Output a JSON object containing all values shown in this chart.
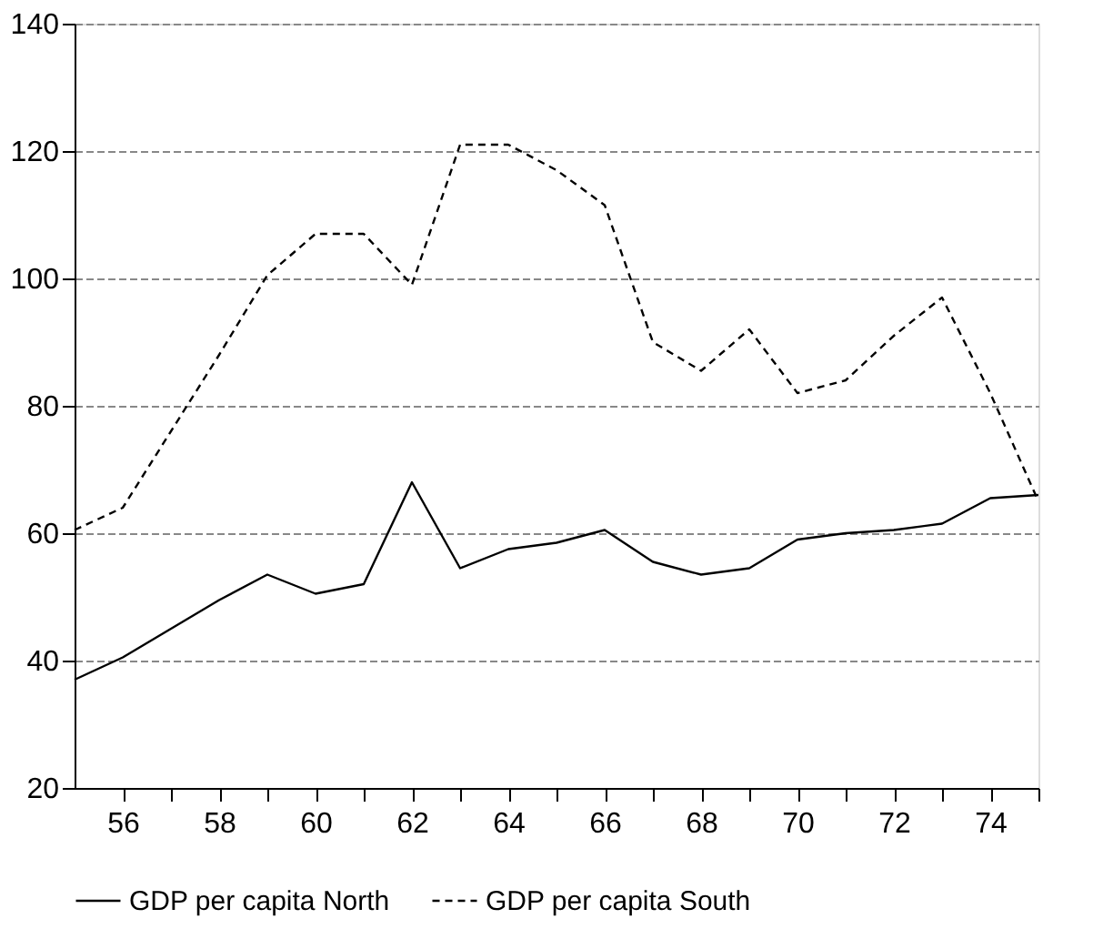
{
  "chart_data": {
    "type": "line",
    "x": [
      55,
      56,
      57,
      58,
      59,
      60,
      61,
      62,
      63,
      64,
      65,
      66,
      67,
      68,
      69,
      70,
      71,
      72,
      73,
      74,
      75
    ],
    "series": [
      {
        "name": "GDP per capita North",
        "color": "#000000",
        "line_style": "solid",
        "values": [
          37,
          40.5,
          45,
          49.5,
          53.5,
          50.5,
          52,
          68,
          54.5,
          57.5,
          58.5,
          60.5,
          55.5,
          53.5,
          54.5,
          59,
          60,
          60.5,
          61.5,
          65.5,
          66
        ]
      },
      {
        "name": "GDP per capita South",
        "color": "#000000",
        "line_style": "dashed",
        "values": [
          60.5,
          64,
          76,
          88,
          100.5,
          107,
          107,
          99,
          121,
          121,
          117,
          111.5,
          90,
          85.5,
          92,
          82,
          84,
          91,
          97,
          82,
          65
        ]
      }
    ],
    "xlim": [
      55,
      75
    ],
    "xticks": [
      56,
      {
        "value": 57,
        "label": null
      },
      58,
      {
        "value": 59,
        "label": null
      },
      60,
      {
        "value": 61,
        "label": null
      },
      62,
      {
        "value": 63,
        "label": null
      },
      64,
      {
        "value": 65,
        "label": null
      },
      66,
      {
        "value": 67,
        "label": null
      },
      68,
      {
        "value": 69,
        "label": null
      },
      70,
      {
        "value": 71,
        "label": null
      },
      72,
      {
        "value": 73,
        "label": null
      },
      74,
      {
        "value": 75,
        "label": null
      }
    ],
    "ylim": [
      20,
      140
    ],
    "yticks": [
      20,
      40,
      60,
      80,
      100,
      120,
      140
    ],
    "grid": "y",
    "legend": "bottom",
    "marker": "none"
  }
}
